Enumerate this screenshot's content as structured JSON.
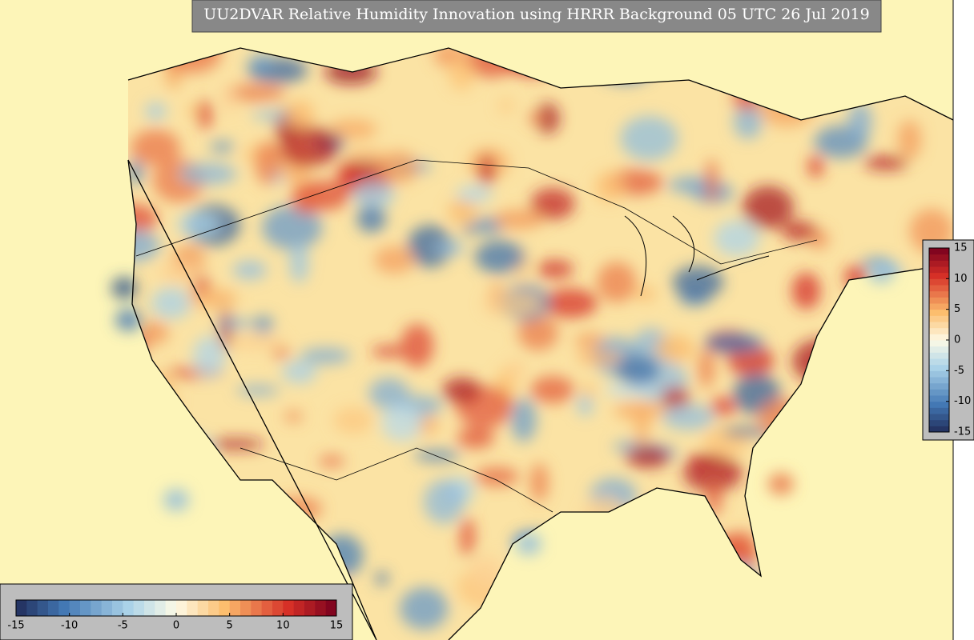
{
  "title": "UU2DVAR Relative Humidity Innovation using HRRR Background 05 UTC 26 Jul 2019",
  "colorbar": {
    "range": [
      -15,
      15
    ],
    "ticks": [
      -15,
      -10,
      -5,
      0,
      5,
      10,
      15
    ]
  }
}
